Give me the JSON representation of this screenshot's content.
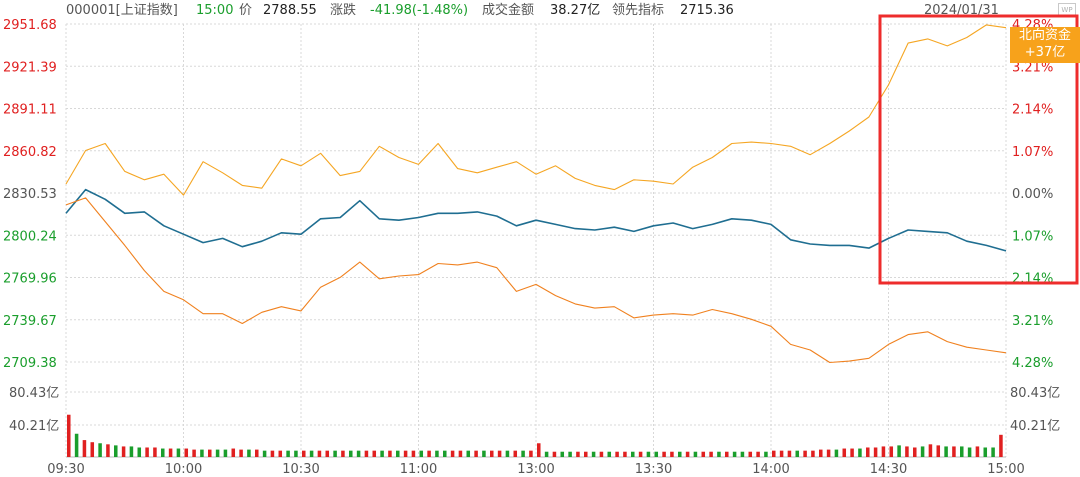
{
  "header": {
    "code": "000001[上证指数]",
    "time": "15:00",
    "price_label": "价",
    "price": "2788.55",
    "change_label": "涨跌",
    "change": "-41.98(-1.48%)",
    "turnover_label": "成交金额",
    "turnover": "38.27亿",
    "leading_label": "领先指标",
    "leading": "2715.36",
    "date": "2024/01/31",
    "wp_icon": "wp-icon"
  },
  "north_flag": {
    "line1": "北向资金",
    "line2": "+37亿"
  },
  "colors": {
    "red": "#e02020",
    "green": "#1a9e2c",
    "price_line": "#1f6e91",
    "orange_line": "#f5a623",
    "orange_lower": "#f0811f",
    "grid": "#d8d8d8",
    "highlight": "#ee2c2c"
  },
  "chart_data": {
    "type": "line",
    "x_range": [
      "09:30",
      "15:00"
    ],
    "y_left_ticks": [
      "2951.68",
      "2921.39",
      "2891.11",
      "2860.82",
      "2830.53",
      "2800.24",
      "2769.96",
      "2739.67",
      "2709.38"
    ],
    "y_right_ticks": [
      "4.28%",
      "3.21%",
      "2.14%",
      "1.07%",
      "0.00%",
      "1.07%",
      "2.14%",
      "3.21%",
      "4.28%"
    ],
    "volume_ticks": [
      "80.43亿",
      "40.21亿"
    ],
    "x_ticks": [
      "09:30",
      "10:00",
      "10:30",
      "11:00",
      "13:00",
      "13:30",
      "14:00",
      "14:30",
      "15:00"
    ],
    "series": [
      {
        "key": "upper",
        "x": [
          0,
          5,
          10,
          15,
          20,
          25,
          30,
          35,
          40,
          45,
          50,
          55,
          60,
          65,
          70,
          75,
          80,
          85,
          90,
          95,
          100,
          105,
          110,
          115,
          120,
          125,
          130,
          135,
          140,
          145,
          150,
          155,
          160,
          165,
          170,
          175,
          180,
          185,
          190,
          195,
          200,
          205,
          210,
          215,
          220,
          225,
          230,
          235,
          240
        ],
        "values": [
          2837,
          2861,
          2866,
          2846,
          2840,
          2844,
          2829,
          2853,
          2845,
          2836,
          2834,
          2855,
          2850,
          2859,
          2843,
          2846,
          2864,
          2856,
          2851,
          2866,
          2848,
          2845,
          2849,
          2853,
          2844,
          2850,
          2841,
          2836,
          2833,
          2840,
          2839,
          2837,
          2849,
          2856,
          2866,
          2867,
          2866,
          2864,
          2858,
          2866,
          2875,
          2885,
          2908,
          2938,
          2941,
          2936,
          2942,
          2951,
          2949
        ]
      },
      {
        "key": "price",
        "x": [
          0,
          5,
          10,
          15,
          20,
          25,
          30,
          35,
          40,
          45,
          50,
          55,
          60,
          65,
          70,
          75,
          80,
          85,
          90,
          95,
          100,
          105,
          110,
          115,
          120,
          125,
          130,
          135,
          140,
          145,
          150,
          155,
          160,
          165,
          170,
          175,
          180,
          185,
          190,
          195,
          200,
          205,
          210,
          215,
          220,
          225,
          230,
          235,
          240
        ],
        "values": [
          2816,
          2833,
          2826,
          2816,
          2817,
          2807,
          2801,
          2795,
          2798,
          2792,
          2796,
          2802,
          2801,
          2812,
          2813,
          2825,
          2812,
          2811,
          2813,
          2816,
          2816,
          2817,
          2814,
          2807,
          2811,
          2808,
          2805,
          2804,
          2806,
          2803,
          2807,
          2809,
          2805,
          2808,
          2812,
          2811,
          2808,
          2797,
          2794,
          2793,
          2793,
          2791,
          2798,
          2804,
          2803,
          2802,
          2796,
          2793,
          2789
        ]
      },
      {
        "key": "lower",
        "x": [
          0,
          5,
          10,
          15,
          20,
          25,
          30,
          35,
          40,
          45,
          50,
          55,
          60,
          65,
          70,
          75,
          80,
          85,
          90,
          95,
          100,
          105,
          110,
          115,
          120,
          125,
          130,
          135,
          140,
          145,
          150,
          155,
          160,
          165,
          170,
          175,
          180,
          185,
          190,
          195,
          200,
          205,
          210,
          215,
          220,
          225,
          230,
          235,
          240
        ],
        "values": [
          2822,
          2827,
          2810,
          2793,
          2775,
          2760,
          2754,
          2744,
          2744,
          2737,
          2745,
          2749,
          2746,
          2763,
          2770,
          2781,
          2769,
          2771,
          2772,
          2780,
          2779,
          2781,
          2777,
          2760,
          2765,
          2757,
          2751,
          2748,
          2749,
          2741,
          2743,
          2744,
          2743,
          2747,
          2744,
          2740,
          2735,
          2722,
          2718,
          2709,
          2710,
          2712,
          2722,
          2729,
          2731,
          2724,
          2720,
          2718,
          2716
        ]
      }
    ],
    "volume": {
      "unit": "亿",
      "max": 80.43,
      "step_minutes": 2,
      "values": [
        40,
        22,
        16,
        14,
        13,
        12,
        11,
        10,
        10,
        9,
        9,
        9,
        8,
        8,
        8,
        8,
        7,
        7,
        7,
        7,
        7,
        8,
        7,
        7,
        7,
        6,
        6,
        6,
        6,
        6,
        6,
        6,
        6,
        6,
        6,
        6,
        6,
        6,
        6,
        6,
        6,
        6,
        6,
        6,
        6,
        6,
        6,
        6,
        6,
        6,
        6,
        6,
        6,
        6,
        6,
        6,
        6,
        6,
        6,
        6,
        13,
        5,
        5,
        5,
        5,
        5,
        5,
        5,
        5,
        5,
        5,
        5,
        5,
        5,
        5,
        5,
        5,
        5,
        5,
        5,
        5,
        5,
        5,
        5,
        5,
        5,
        5,
        5,
        5,
        5,
        6,
        6,
        6,
        6,
        6,
        6,
        7,
        7,
        7,
        8,
        8,
        8,
        9,
        9,
        10,
        10,
        11,
        10,
        9,
        10,
        12,
        11,
        10,
        10,
        10,
        9,
        10,
        9,
        9,
        21
      ],
      "up_flags": [
        1,
        0,
        1,
        1,
        0,
        1,
        0,
        1,
        0,
        0,
        1,
        1,
        0,
        1,
        0,
        1,
        1,
        0,
        1,
        0,
        0,
        1,
        1,
        0,
        1,
        0,
        1,
        1,
        0,
        0,
        1,
        0,
        1,
        1,
        0,
        1,
        0,
        0,
        1,
        1,
        0,
        1,
        0,
        1,
        1,
        0,
        1,
        0,
        0,
        1,
        1,
        0,
        1,
        0,
        1,
        1,
        0,
        1,
        0,
        1,
        1,
        0,
        1,
        0,
        0,
        1,
        1,
        0,
        1,
        0,
        1,
        1,
        0,
        1,
        0,
        0,
        1,
        1,
        0,
        1,
        0,
        1,
        1,
        0,
        1,
        0,
        0,
        1,
        1,
        0,
        1,
        1,
        1,
        0,
        1,
        1,
        1,
        1,
        0,
        1,
        1,
        0,
        1,
        1,
        1,
        1,
        0,
        1,
        1,
        0,
        1,
        1,
        0,
        1,
        0,
        0,
        1,
        0,
        0,
        1
      ]
    },
    "highlight_range": [
      "14:30",
      "15:00"
    ]
  }
}
